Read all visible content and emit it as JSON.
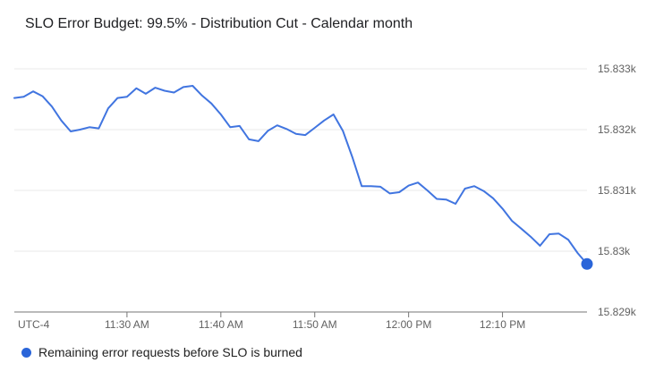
{
  "header": {
    "title": "SLO Error Budget: 99.5% - Distribution Cut - Calendar month"
  },
  "legend": {
    "label": "Remaining error requests before SLO is burned",
    "marker_color": "#2a65d9"
  },
  "chart_data": {
    "type": "line",
    "title": "SLO Error Budget: 99.5% - Distribution Cut - Calendar month",
    "grid": "horizontal-only",
    "legend_position": "bottom-left",
    "x_axis": {
      "timezone_label": "UTC-4",
      "ticks": [
        "11:30 AM",
        "11:40 AM",
        "11:50 AM",
        "12:00 PM",
        "12:10 PM"
      ]
    },
    "y_axis": {
      "side": "right",
      "range": [
        15829,
        15833
      ],
      "ticks": [
        {
          "label": "15.833k",
          "value": 15833
        },
        {
          "label": "15.832k",
          "value": 15832
        },
        {
          "label": "15.831k",
          "value": 15831
        },
        {
          "label": "15.83k",
          "value": 15830
        },
        {
          "label": "15.829k",
          "value": 15829
        }
      ]
    },
    "colors": {
      "line": "#4175e0",
      "end_dot": "#2a65d9",
      "gridline": "#e8e8e8",
      "axis_line": "#757575",
      "tick_mark": "#757575",
      "tick_text": "#616161"
    },
    "series": [
      {
        "name": "Remaining error requests before SLO is burned",
        "end_dot": true,
        "x": [
          "11:18 AM",
          "11:19 AM",
          "11:20 AM",
          "11:21 AM",
          "11:22 AM",
          "11:23 AM",
          "11:24 AM",
          "11:25 AM",
          "11:26 AM",
          "11:27 AM",
          "11:28 AM",
          "11:29 AM",
          "11:30 AM",
          "11:31 AM",
          "11:32 AM",
          "11:33 AM",
          "11:34 AM",
          "11:35 AM",
          "11:36 AM",
          "11:37 AM",
          "11:38 AM",
          "11:39 AM",
          "11:40 AM",
          "11:41 AM",
          "11:42 AM",
          "11:43 AM",
          "11:44 AM",
          "11:45 AM",
          "11:46 AM",
          "11:47 AM",
          "11:48 AM",
          "11:49 AM",
          "11:50 AM",
          "11:51 AM",
          "11:52 AM",
          "11:53 AM",
          "11:54 AM",
          "11:55 AM",
          "11:56 AM",
          "11:57 AM",
          "11:58 AM",
          "11:59 AM",
          "12:00 PM",
          "12:01 PM",
          "12:02 PM",
          "12:03 PM",
          "12:04 PM",
          "12:05 PM",
          "12:06 PM",
          "12:07 PM",
          "12:08 PM",
          "12:09 PM",
          "12:10 PM",
          "12:11 PM",
          "12:12 PM",
          "12:13 PM",
          "12:14 PM",
          "12:15 PM",
          "12:16 PM",
          "12:17 PM",
          "12:18 PM",
          "12:19 PM"
        ],
        "values": [
          15832.52,
          15832.54,
          15832.63,
          15832.55,
          15832.38,
          15832.15,
          15831.97,
          15832.0,
          15832.04,
          15832.02,
          15832.35,
          15832.52,
          15832.54,
          15832.68,
          15832.59,
          15832.69,
          15832.64,
          15832.61,
          15832.7,
          15832.72,
          15832.56,
          15832.43,
          15832.25,
          15832.04,
          15832.06,
          15831.84,
          15831.81,
          15831.98,
          15832.07,
          15832.01,
          15831.93,
          15831.91,
          15832.03,
          15832.15,
          15832.25,
          15831.98,
          15831.55,
          15831.07,
          15831.07,
          15831.06,
          15830.95,
          15830.97,
          15831.08,
          15831.13,
          15831.0,
          15830.86,
          15830.85,
          15830.78,
          15831.03,
          15831.07,
          15830.99,
          15830.87,
          15830.7,
          15830.5,
          15830.37,
          15830.24,
          15830.09,
          15830.28,
          15830.29,
          15830.19,
          15829.97,
          15829.79
        ]
      }
    ]
  }
}
